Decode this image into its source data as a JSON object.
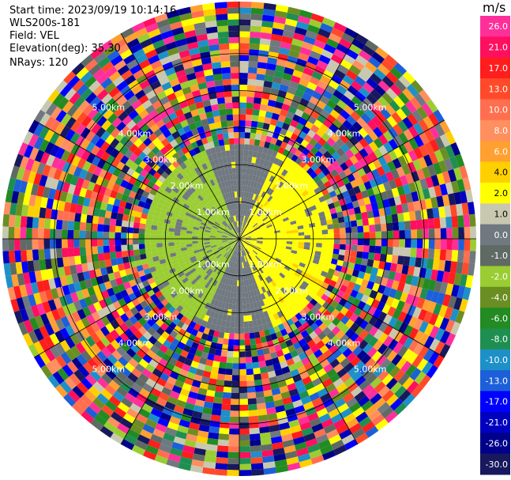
{
  "header": {
    "start_time": "Start time: 2023/09/19 10:14:16",
    "instrument": "WLS200s-181",
    "field": "Field: VEL",
    "elevation": "Elevation(deg): 35.30",
    "nrays": "NRays: 120"
  },
  "colorbar": {
    "unit": "m/s",
    "tick_labels": [
      "26.0",
      "21.0",
      "17.0",
      "13.0",
      "10.0",
      "8.0",
      "6.0",
      "4.0",
      "2.0",
      "1.0",
      "0.0",
      "-1.0",
      "-2.0",
      "-4.0",
      "-6.0",
      "-8.0",
      "-10.0",
      "-13.0",
      "-17.0",
      "-21.0",
      "-26.0",
      "-30.0"
    ],
    "colors": [
      "#ff2f9a",
      "#ff0f5f",
      "#ff1d1d",
      "#ff4a2a",
      "#ff6f4f",
      "#ff8f5f",
      "#ffa030",
      "#ffd000",
      "#ffff00",
      "#c8c8b0",
      "#707880",
      "#606a64",
      "#9acd32",
      "#6b8e23",
      "#228b22",
      "#1e8f50",
      "#1e90c8",
      "#1c5fd8",
      "#0000ff",
      "#0000c0",
      "#00008b",
      "#18185e"
    ]
  },
  "chart_data": {
    "type": "polar-ppi",
    "title": "",
    "field": "VEL",
    "units": "m/s",
    "elevation_deg": 35.3,
    "nrays": 120,
    "range_ring_labels_km": [
      "1.00km",
      "2.00km",
      "3.00km",
      "4.00km",
      "5.00km"
    ],
    "range_rings_km": [
      1,
      2,
      3,
      4,
      5
    ],
    "max_range_km": 6.4,
    "valid_data_range_km": 2.6,
    "near_range_velocity_by_azimuth_deg": {
      "0": 0,
      "45": 2,
      "90": 2,
      "135": 2,
      "180": 0,
      "225": -2,
      "270": -2,
      "315": -2
    },
    "far_range": "noise (random velocities)"
  }
}
